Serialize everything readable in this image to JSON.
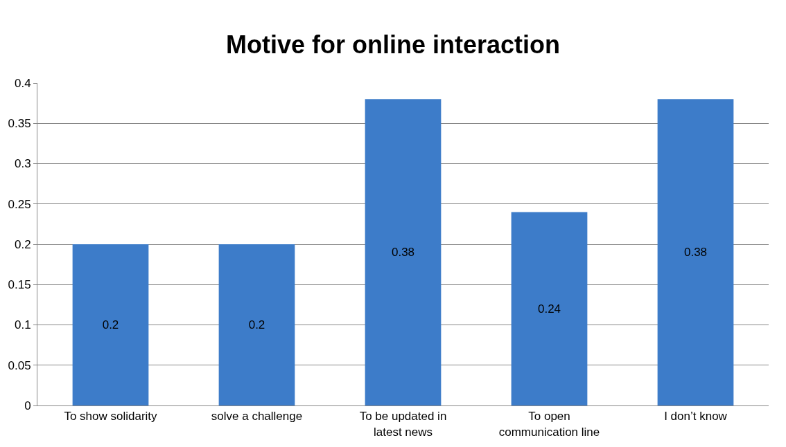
{
  "chart_data": {
    "type": "bar",
    "title": "Motive for online interaction",
    "categories": [
      "To show solidarity",
      "solve a challenge",
      "To be updated in latest news",
      "To open communication line",
      "I don’t know"
    ],
    "values": [
      0.2,
      0.2,
      0.38,
      0.24,
      0.38
    ],
    "color": "#3d7cc9",
    "ylim": [
      0,
      0.4
    ],
    "yticks": [
      0,
      0.05,
      0.1,
      0.15,
      0.2,
      0.25,
      0.3,
      0.35,
      0.4
    ],
    "grid": "y",
    "data_labels": true
  }
}
